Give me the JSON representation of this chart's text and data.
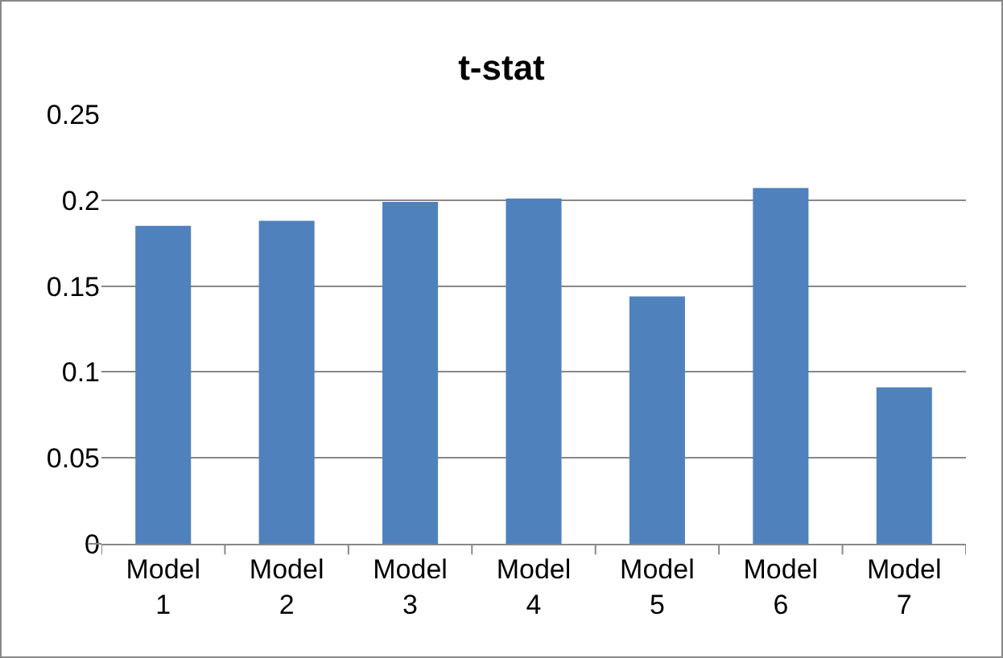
{
  "chart_data": {
    "type": "bar",
    "title": "t-stat",
    "categories": [
      "Model 1",
      "Model 2",
      "Model 3",
      "Model 4",
      "Model 5",
      "Model 6",
      "Model 7"
    ],
    "values": [
      0.185,
      0.188,
      0.199,
      0.201,
      0.144,
      0.207,
      0.091
    ],
    "color": "#4f81bd",
    "ylim": [
      0,
      0.25
    ],
    "yticks": [
      0,
      0.05,
      0.1,
      0.15,
      0.2,
      0.25
    ],
    "grid": "y",
    "legend": false
  }
}
